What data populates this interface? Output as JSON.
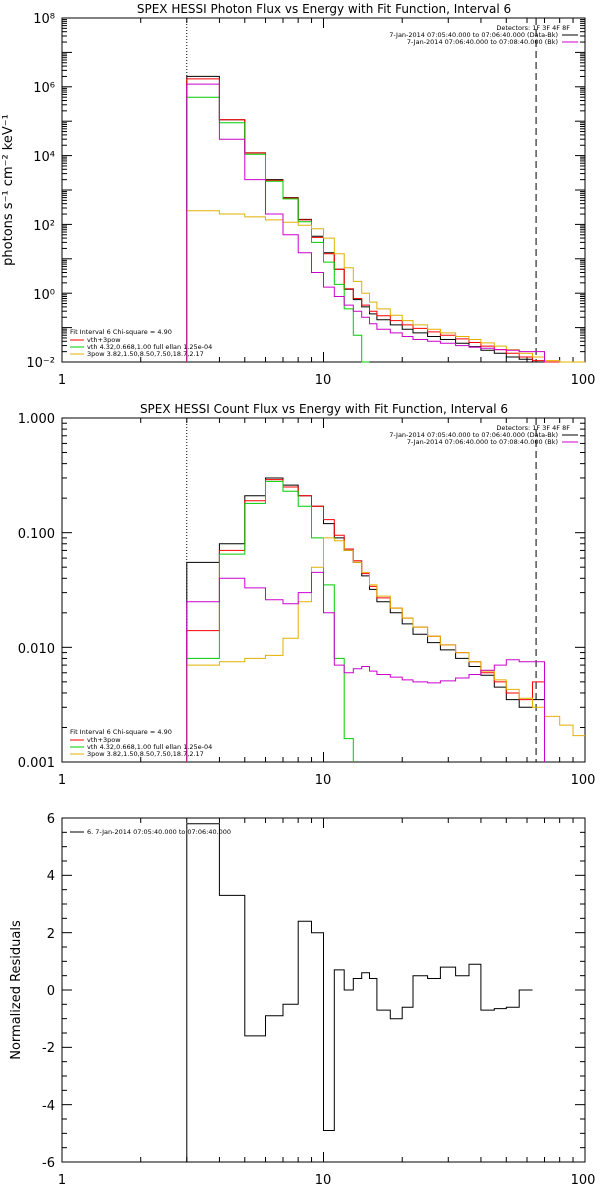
{
  "chart_data": [
    {
      "type": "line",
      "title": "SPEX HESSI Photon Flux vs Energy with Fit Function, Interval 6",
      "ylabel": "photons s⁻¹ cm⁻² keV⁻¹",
      "xlabel": "",
      "xscale": "log",
      "yscale": "log",
      "xlim": [
        1,
        100
      ],
      "ylim": [
        0.01,
        100000000
      ],
      "x_ticks": [
        "1",
        "10",
        "100"
      ],
      "y_ticks": [
        "10⁻²",
        "10⁰",
        "10²",
        "10⁴",
        "10⁶",
        "10⁸"
      ],
      "detectors_label": "Detectors: 1F 3F 4F 8F",
      "legend_right": [
        {
          "text": "7-Jan-2014 07:05:40.000 to 07:06:40.000 (Data-Bk)",
          "color": "#000000"
        },
        {
          "text": "7-Jan-2014 07:06:40.000 to 07:08:40.000 (Bk)",
          "color": "#cc00cc"
        }
      ],
      "fit_info": "Fit Interval 6   Chi-square = 4.90",
      "legend_left": [
        {
          "text": "vth+3pow",
          "color": "#ff0000"
        },
        {
          "text": "vth 4.32,0.668,1.00  full ellan 1.25e-04",
          "color": "#00cc00"
        },
        {
          "text": "3pow 3.82,1.50,8.50,7.50,18.7,2.17",
          "color": "#e0b000"
        }
      ],
      "vlines": [
        {
          "x": 3,
          "style": "dotted"
        },
        {
          "x": 65,
          "style": "dashed"
        }
      ],
      "bin_edges": [
        3,
        4,
        5,
        6,
        7,
        8,
        9,
        10,
        11,
        12,
        13,
        14,
        15,
        16,
        18,
        20,
        22,
        25,
        28,
        32,
        36,
        40,
        45,
        50,
        56,
        63,
        70,
        80,
        90,
        100
      ],
      "series": [
        {
          "name": "Data-Bk",
          "color": "#000000",
          "values": [
            2000000,
            110000,
            12000,
            2000,
            600,
            140,
            45,
            15,
            5,
            1.3,
            0.65,
            0.4,
            0.25,
            0.17,
            0.12,
            0.09,
            0.07,
            0.055,
            0.045,
            0.035,
            0.028,
            0.022,
            0.018,
            0.014,
            0.012,
            0.01,
            null,
            null,
            null
          ]
        },
        {
          "name": "vth+3pow",
          "color": "#ff0000",
          "values": [
            1700000,
            110000,
            12000,
            1900,
            580,
            135,
            42,
            14,
            5,
            1.35,
            0.7,
            0.45,
            0.3,
            0.22,
            0.16,
            0.12,
            0.095,
            0.075,
            0.06,
            0.047,
            0.037,
            0.029,
            0.023,
            0.018,
            0.014,
            0.011,
            0.0085,
            0.0065,
            0.005
          ]
        },
        {
          "name": "vth",
          "color": "#00cc00",
          "values": [
            500000,
            90000,
            11000,
            1800,
            550,
            120,
            30,
            8,
            1.8,
            0.35,
            0.06,
            0.01,
            null,
            null,
            null,
            null,
            null,
            null,
            null,
            null,
            null,
            null,
            null,
            null,
            null,
            null,
            null,
            null,
            null
          ]
        },
        {
          "name": "3pow",
          "color": "#e0b000",
          "values": [
            250,
            200,
            165,
            135,
            115,
            95,
            75,
            40,
            14,
            5.5,
            2.2,
            1.0,
            0.55,
            0.35,
            0.23,
            0.16,
            0.12,
            0.09,
            0.07,
            0.055,
            0.045,
            0.036,
            0.029,
            0.023,
            0.018,
            0.014,
            0.011,
            0.0085,
            0.0065
          ]
        },
        {
          "name": "Bk",
          "color": "#cc00cc",
          "values": [
            1200000,
            30000,
            2000,
            200,
            50,
            15,
            4,
            1.5,
            0.8,
            0.45,
            0.3,
            0.2,
            0.13,
            0.09,
            0.07,
            0.055,
            0.045,
            0.04,
            0.035,
            0.03,
            0.027,
            0.025,
            0.023,
            0.022,
            0.02,
            0.02,
            null,
            null,
            null
          ]
        }
      ]
    },
    {
      "type": "line",
      "title": "SPEX HESSI Count Flux vs Energy with Fit Function, Interval 6",
      "ylabel": "",
      "xlabel": "",
      "xscale": "log",
      "yscale": "log",
      "xlim": [
        1,
        100
      ],
      "ylim": [
        0.001,
        1.0
      ],
      "x_ticks": [
        "1",
        "10",
        "100"
      ],
      "y_ticks": [
        "0.001",
        "0.010",
        "0.100",
        "1.000"
      ],
      "detectors_label": "Detectors: 1F 3F 4F 8F",
      "legend_right": [
        {
          "text": "7-Jan-2014 07:05:40.000 to 07:06:40.000 (Data-Bk)",
          "color": "#000000"
        },
        {
          "text": "7-Jan-2014 07:06:40.000 to 07:08:40.000 (Bk)",
          "color": "#cc00cc"
        }
      ],
      "fit_info": "Fit Interval 6   Chi-square = 4.90",
      "legend_left": [
        {
          "text": "vth+3pow",
          "color": "#ff0000"
        },
        {
          "text": "vth 4.32,0.668,1.00  full ellan 1.25e-04",
          "color": "#00cc00"
        },
        {
          "text": "3pow 3.82,1.50,8.50,7.50,18.7,2.17",
          "color": "#e0b000"
        }
      ],
      "vlines": [
        {
          "x": 3,
          "style": "dotted"
        },
        {
          "x": 65,
          "style": "dashed"
        }
      ],
      "bin_edges": [
        3,
        4,
        5,
        6,
        7,
        8,
        9,
        10,
        11,
        12,
        13,
        14,
        15,
        16,
        18,
        20,
        22,
        25,
        28,
        32,
        36,
        40,
        45,
        50,
        56,
        63,
        70,
        80,
        90,
        100
      ],
      "series": [
        {
          "name": "Data-Bk",
          "color": "#000000",
          "values": [
            0.055,
            0.08,
            0.21,
            0.3,
            0.26,
            0.21,
            0.17,
            0.12,
            0.09,
            0.07,
            0.055,
            0.042,
            0.032,
            0.025,
            0.02,
            0.016,
            0.013,
            0.011,
            0.0095,
            0.008,
            0.0068,
            0.0057,
            0.0045,
            0.0035,
            0.003,
            0.0035,
            null,
            null,
            null
          ]
        },
        {
          "name": "vth+3pow",
          "color": "#ff0000",
          "values": [
            0.014,
            0.07,
            0.19,
            0.29,
            0.25,
            0.21,
            0.17,
            0.13,
            0.095,
            0.072,
            0.057,
            0.044,
            0.034,
            0.027,
            0.022,
            0.018,
            0.015,
            0.0125,
            0.0105,
            0.009,
            0.0075,
            0.006,
            0.005,
            0.004,
            0.0035,
            0.005,
            null,
            null,
            null
          ]
        },
        {
          "name": "vth",
          "color": "#00cc00",
          "values": [
            0.008,
            0.065,
            0.18,
            0.28,
            0.23,
            0.17,
            0.09,
            0.035,
            0.008,
            0.0016,
            null,
            null,
            null,
            null,
            null,
            null,
            null,
            null,
            null,
            null,
            null,
            null,
            null,
            null,
            null,
            null,
            null,
            null,
            null
          ]
        },
        {
          "name": "3pow",
          "color": "#e0b000",
          "values": [
            0.007,
            0.0075,
            0.008,
            0.0085,
            0.012,
            0.025,
            0.05,
            0.09,
            0.085,
            0.07,
            0.055,
            0.045,
            0.035,
            0.028,
            0.022,
            0.018,
            0.015,
            0.0125,
            0.0105,
            0.009,
            0.0075,
            0.0062,
            0.0052,
            0.0043,
            0.0036,
            0.003,
            0.0025,
            0.0021,
            0.0017
          ]
        },
        {
          "name": "Bk",
          "color": "#cc00cc",
          "values": [
            0.025,
            0.04,
            0.033,
            0.026,
            0.024,
            0.03,
            0.045,
            0.02,
            0.007,
            0.006,
            0.0065,
            0.0068,
            0.0062,
            0.0058,
            0.0055,
            0.0052,
            0.005,
            0.0049,
            0.0051,
            0.0054,
            0.0058,
            0.0063,
            0.007,
            0.0078,
            0.0075,
            0.0075,
            null,
            null,
            null
          ]
        }
      ]
    },
    {
      "type": "line",
      "title": "",
      "ylabel": "Normalized Residuals",
      "xlabel": "",
      "xscale": "log",
      "yscale": "linear",
      "xlim": [
        1,
        100
      ],
      "ylim": [
        -6,
        6
      ],
      "x_ticks": [
        "1",
        "10",
        "100"
      ],
      "y_ticks": [
        "-6",
        "-4",
        "-2",
        "0",
        "2",
        "4",
        "6"
      ],
      "legend": "6. 7-Jan-2014 07:05:40.000 to 07:06:40.000",
      "bin_edges": [
        3,
        4,
        5,
        6,
        7,
        8,
        9,
        10,
        11,
        12,
        13,
        14,
        15,
        16,
        18,
        20,
        22,
        25,
        28,
        32,
        36,
        40,
        45,
        50,
        56,
        63
      ],
      "values": [
        5.8,
        3.3,
        -1.6,
        -0.9,
        -0.5,
        2.4,
        2.0,
        -4.9,
        0.7,
        0.0,
        0.4,
        0.6,
        0.4,
        -0.7,
        -1.0,
        -0.6,
        0.5,
        0.4,
        0.8,
        0.5,
        0.9,
        -0.7,
        -0.65,
        -0.6,
        0.0
      ]
    }
  ]
}
